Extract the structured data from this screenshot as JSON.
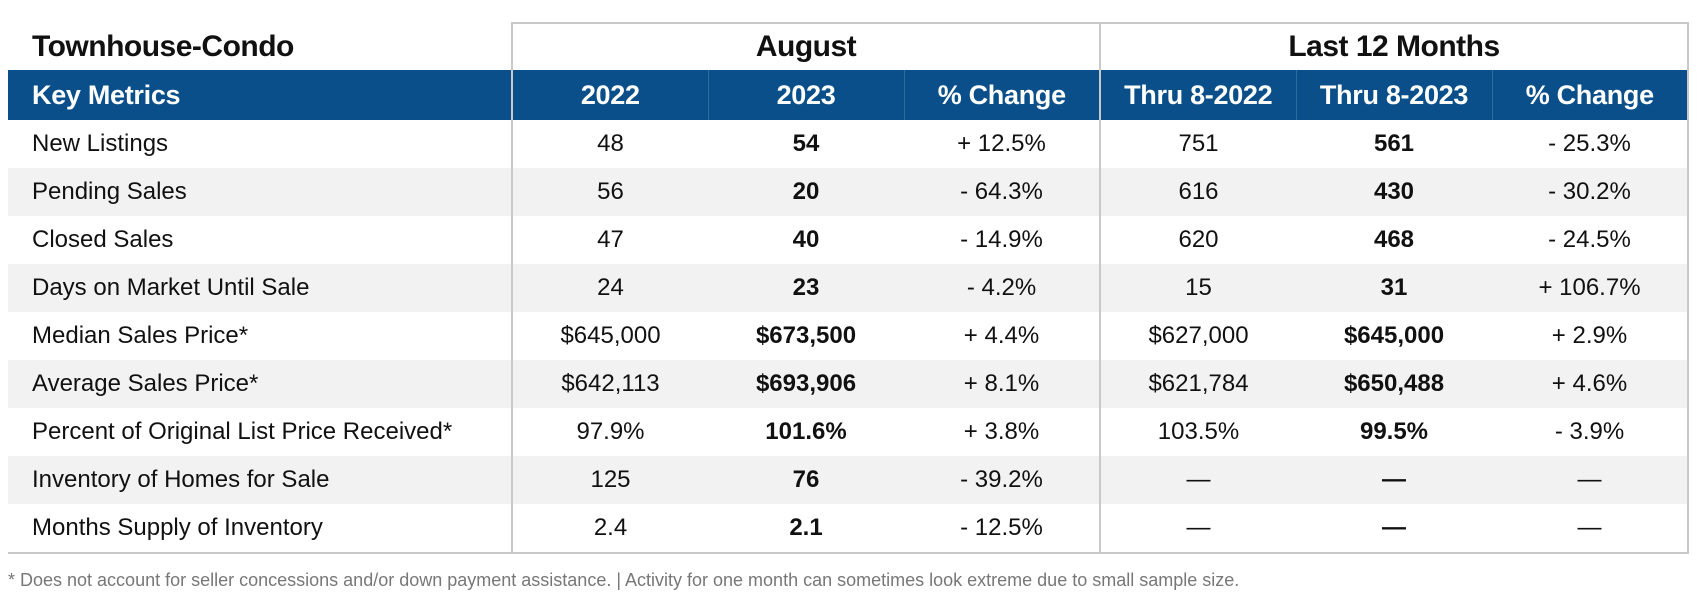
{
  "section_title": "Townhouse-Condo",
  "groups": {
    "august": "August",
    "last12": "Last 12 Months"
  },
  "headers": {
    "metric": "Key Metrics",
    "aug_2022": "2022",
    "aug_2023": "2023",
    "aug_change": "% Change",
    "ytd_2022": "Thru 8-2022",
    "ytd_2023": "Thru 8-2023",
    "ytd_change": "% Change"
  },
  "rows": [
    {
      "metric": "New Listings",
      "aug_2022": "48",
      "aug_2023": "54",
      "aug_change": "+ 12.5%",
      "ytd_2022": "751",
      "ytd_2023": "561",
      "ytd_change": "- 25.3%"
    },
    {
      "metric": "Pending Sales",
      "aug_2022": "56",
      "aug_2023": "20",
      "aug_change": "- 64.3%",
      "ytd_2022": "616",
      "ytd_2023": "430",
      "ytd_change": "- 30.2%"
    },
    {
      "metric": "Closed Sales",
      "aug_2022": "47",
      "aug_2023": "40",
      "aug_change": "- 14.9%",
      "ytd_2022": "620",
      "ytd_2023": "468",
      "ytd_change": "- 24.5%"
    },
    {
      "metric": "Days on Market Until Sale",
      "aug_2022": "24",
      "aug_2023": "23",
      "aug_change": "- 4.2%",
      "ytd_2022": "15",
      "ytd_2023": "31",
      "ytd_change": "+ 106.7%"
    },
    {
      "metric": "Median Sales Price*",
      "aug_2022": "$645,000",
      "aug_2023": "$673,500",
      "aug_change": "+ 4.4%",
      "ytd_2022": "$627,000",
      "ytd_2023": "$645,000",
      "ytd_change": "+ 2.9%"
    },
    {
      "metric": "Average Sales Price*",
      "aug_2022": "$642,113",
      "aug_2023": "$693,906",
      "aug_change": "+ 8.1%",
      "ytd_2022": "$621,784",
      "ytd_2023": "$650,488",
      "ytd_change": "+ 4.6%"
    },
    {
      "metric": "Percent of Original List Price Received*",
      "aug_2022": "97.9%",
      "aug_2023": "101.6%",
      "aug_change": "+ 3.8%",
      "ytd_2022": "103.5%",
      "ytd_2023": "99.5%",
      "ytd_change": "- 3.9%"
    },
    {
      "metric": "Inventory of Homes for Sale",
      "aug_2022": "125",
      "aug_2023": "76",
      "aug_change": "- 39.2%",
      "ytd_2022": "—",
      "ytd_2023": "—",
      "ytd_change": "—"
    },
    {
      "metric": "Months Supply of Inventory",
      "aug_2022": "2.4",
      "aug_2023": "2.1",
      "aug_change": "- 12.5%",
      "ytd_2022": "—",
      "ytd_2023": "—",
      "ytd_change": "—"
    }
  ],
  "footnote": "* Does not account for seller concessions and/or down payment assistance. | Activity for one month can sometimes look extreme due to small sample size."
}
